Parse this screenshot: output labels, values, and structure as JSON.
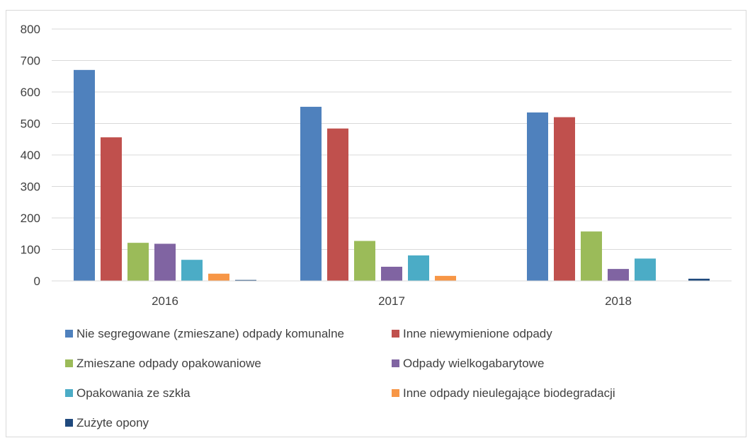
{
  "chart_data": {
    "type": "bar",
    "title": "",
    "xlabel": "",
    "ylabel": "",
    "categories": [
      "2016",
      "2017",
      "2018"
    ],
    "ylim": [
      0,
      800
    ],
    "yticks": [
      "0",
      "100",
      "200",
      "300",
      "400",
      "500",
      "600",
      "700",
      "800"
    ],
    "grid": true,
    "legend_position": "bottom",
    "series": [
      {
        "name": "Nie segregowane (zmieszane) odpady komunalne",
        "color": "#4f81bd",
        "values": [
          670,
          553,
          535
        ]
      },
      {
        "name": "Inne niewymienione odpady",
        "color": "#c0504d",
        "values": [
          456,
          484,
          520
        ]
      },
      {
        "name": "Zmieszane odpady opakowaniowe",
        "color": "#9bbb59",
        "values": [
          121,
          127,
          157
        ]
      },
      {
        "name": "Odpady wielkogabarytowe",
        "color": "#8064a2",
        "values": [
          118,
          45,
          38
        ]
      },
      {
        "name": "Opakowania ze szkła",
        "color": "#4bacc6",
        "values": [
          67,
          81,
          71
        ]
      },
      {
        "name": "Inne odpady nieulegające biodegradacji",
        "color": "#f79646",
        "values": [
          23,
          16,
          1
        ]
      },
      {
        "name": "Zużyte opony",
        "color": "#1f497d",
        "values": [
          3,
          0,
          7
        ]
      }
    ]
  }
}
